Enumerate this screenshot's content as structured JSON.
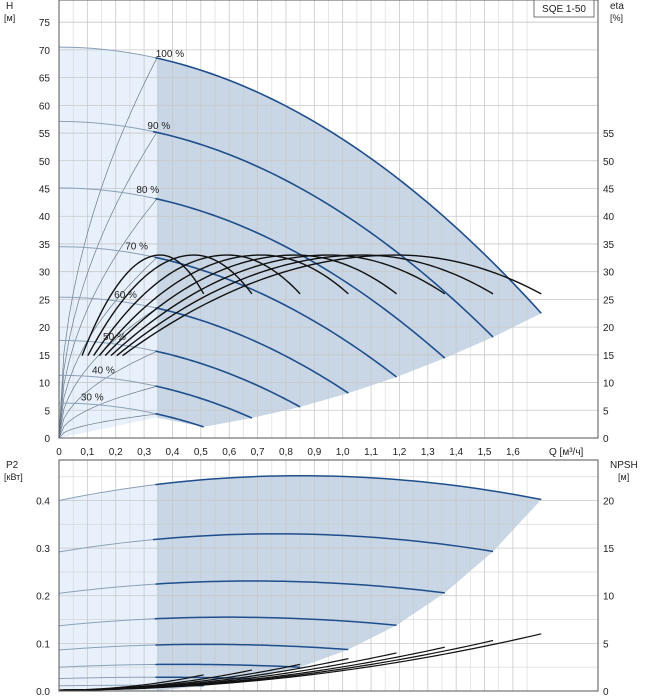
{
  "chart_data": [
    {
      "type": "line",
      "title": "SQE 1-50",
      "xlabel": "Q [м³/ч]",
      "ylabel_left": "H",
      "ylabel_left_unit": "[м]",
      "ylabel_right": "eta",
      "ylabel_right_unit": "[%]",
      "xlim": [
        0,
        1.9
      ],
      "ylim_left": [
        0,
        79
      ],
      "ylim_right": [
        0,
        79
      ],
      "x_ticks": [
        "0",
        "0,1",
        "0,2",
        "0,3",
        "0,4",
        "0,5",
        "0,6",
        "0,7",
        "0,8",
        "0,9",
        "1,0",
        "1,1",
        "1,2",
        "1,3",
        "1,4",
        "1,5",
        "1,6"
      ],
      "x_tick_values": [
        0,
        0.1,
        0.2,
        0.3,
        0.4,
        0.5,
        0.6,
        0.7,
        0.8,
        0.9,
        1.0,
        1.1,
        1.2,
        1.3,
        1.4,
        1.5,
        1.6
      ],
      "y_left_ticks": [
        0,
        5,
        10,
        15,
        20,
        25,
        30,
        35,
        40,
        45,
        50,
        55,
        60,
        65,
        70,
        75
      ],
      "y_right_ticks": [
        0,
        5,
        10,
        15,
        20,
        25,
        30,
        35,
        40,
        45,
        50,
        55
      ],
      "operating_range_min_q": 0.345,
      "speed_curves": [
        {
          "name": "100 %",
          "h0": 70.5,
          "qmax": 1.7,
          "hend": 22.5
        },
        {
          "name": "90 %",
          "h0": 57.1,
          "qmax": 1.53,
          "hend": 18.2
        },
        {
          "name": "80 %",
          "h0": 45.1,
          "qmax": 1.36,
          "hend": 14.4
        },
        {
          "name": "70 %",
          "h0": 34.5,
          "qmax": 1.19,
          "hend": 11.0
        },
        {
          "name": "60 %",
          "h0": 25.4,
          "qmax": 1.02,
          "hend": 8.1
        },
        {
          "name": "50 %",
          "h0": 17.6,
          "qmax": 0.85,
          "hend": 5.6
        },
        {
          "name": "40 %",
          "h0": 11.3,
          "qmax": 0.68,
          "hend": 3.6
        },
        {
          "name": "30 %",
          "h0": 6.3,
          "qmax": 0.51,
          "hend": 2.0
        }
      ],
      "efficiency_curves": [
        {
          "name": "eta 100 %",
          "peak_q": 1.19,
          "peak_eta": 33,
          "qmax": 1.7,
          "eta_end": 26
        },
        {
          "name": "eta 90 %",
          "peak_q": 1.071,
          "peak_eta": 33,
          "qmax": 1.53,
          "eta_end": 26
        },
        {
          "name": "eta 80 %",
          "peak_q": 0.952,
          "peak_eta": 33,
          "qmax": 1.36,
          "eta_end": 26
        },
        {
          "name": "eta 70 %",
          "peak_q": 0.833,
          "peak_eta": 33,
          "qmax": 1.19,
          "eta_end": 26
        },
        {
          "name": "eta 60 %",
          "peak_q": 0.714,
          "peak_eta": 33,
          "qmax": 1.02,
          "eta_end": 26
        },
        {
          "name": "eta 50 %",
          "peak_q": 0.595,
          "peak_eta": 33,
          "qmax": 0.85,
          "eta_end": 26
        },
        {
          "name": "eta 40 %",
          "peak_q": 0.476,
          "peak_eta": 33,
          "qmax": 0.68,
          "eta_end": 26
        },
        {
          "name": "eta 30 %",
          "peak_q": 0.357,
          "peak_eta": 33,
          "qmax": 0.51,
          "eta_end": 26
        }
      ]
    },
    {
      "type": "line",
      "title": "",
      "xlabel": "Q [м³/ч]",
      "ylabel_left": "P2",
      "ylabel_left_unit": "[кВт]",
      "ylabel_right": "NPSH",
      "ylabel_right_unit": "[м]",
      "xlim": [
        0,
        1.9
      ],
      "ylim_left": [
        0,
        0.485
      ],
      "ylim_right": [
        0,
        24.25
      ],
      "y_left_ticks": [
        "0.0",
        "0.1",
        "0.2",
        "0.3",
        "0.4"
      ],
      "y_left_tick_values": [
        0,
        0.1,
        0.2,
        0.3,
        0.4
      ],
      "y_right_ticks": [
        0,
        5,
        10,
        15,
        20
      ],
      "power_curves": [
        {
          "name": "P2 100 %",
          "p0": 0.4,
          "peak_q": 0.85,
          "peak_p": 0.452,
          "qmax": 1.7,
          "pend": 0.402
        },
        {
          "name": "P2 90 %",
          "p0": 0.292,
          "peak_q": 0.765,
          "peak_p": 0.33,
          "qmax": 1.53,
          "pend": 0.293
        },
        {
          "name": "P2 80 %",
          "p0": 0.205,
          "peak_q": 0.68,
          "peak_p": 0.231,
          "qmax": 1.36,
          "pend": 0.206
        },
        {
          "name": "P2 70 %",
          "p0": 0.137,
          "peak_q": 0.595,
          "peak_p": 0.155,
          "qmax": 1.19,
          "pend": 0.138
        },
        {
          "name": "P2 60 %",
          "p0": 0.086,
          "peak_q": 0.51,
          "peak_p": 0.098,
          "qmax": 1.02,
          "pend": 0.087
        },
        {
          "name": "P2 50 %",
          "p0": 0.05,
          "peak_q": 0.425,
          "peak_p": 0.056,
          "qmax": 0.85,
          "pend": 0.05
        },
        {
          "name": "P2 40 %",
          "p0": 0.026,
          "peak_q": 0.34,
          "peak_p": 0.029,
          "qmax": 0.68,
          "pend": 0.026
        },
        {
          "name": "P2 30 %",
          "p0": 0.011,
          "peak_q": 0.255,
          "peak_p": 0.012,
          "qmax": 0.51,
          "pend": 0.011
        }
      ],
      "npsh_curves": [
        {
          "name": "NPSH 100 %",
          "n0": 0.1,
          "qmax": 1.7,
          "nend": 6.0
        },
        {
          "name": "NPSH 90 %",
          "n0": 0.1,
          "qmax": 1.53,
          "nend": 5.3
        },
        {
          "name": "NPSH 80 %",
          "n0": 0.1,
          "qmax": 1.36,
          "nend": 4.6
        },
        {
          "name": "NPSH 70 %",
          "n0": 0.1,
          "qmax": 1.19,
          "nend": 4.0
        },
        {
          "name": "NPSH 60 %",
          "n0": 0.1,
          "qmax": 1.02,
          "nend": 3.4
        },
        {
          "name": "NPSH 50 %",
          "n0": 0.1,
          "qmax": 0.85,
          "nend": 2.8
        },
        {
          "name": "NPSH 40 %",
          "n0": 0.1,
          "qmax": 0.68,
          "nend": 2.2
        },
        {
          "name": "NPSH 30 %",
          "n0": 0.1,
          "qmax": 0.51,
          "nend": 1.7
        }
      ]
    }
  ],
  "colors": {
    "curve_blue": "#1f4e8c",
    "curve_black": "#111111",
    "region_dark": "#c8d6e5",
    "region_light": "#e8f1fb",
    "grid": "#c8c8c8"
  }
}
